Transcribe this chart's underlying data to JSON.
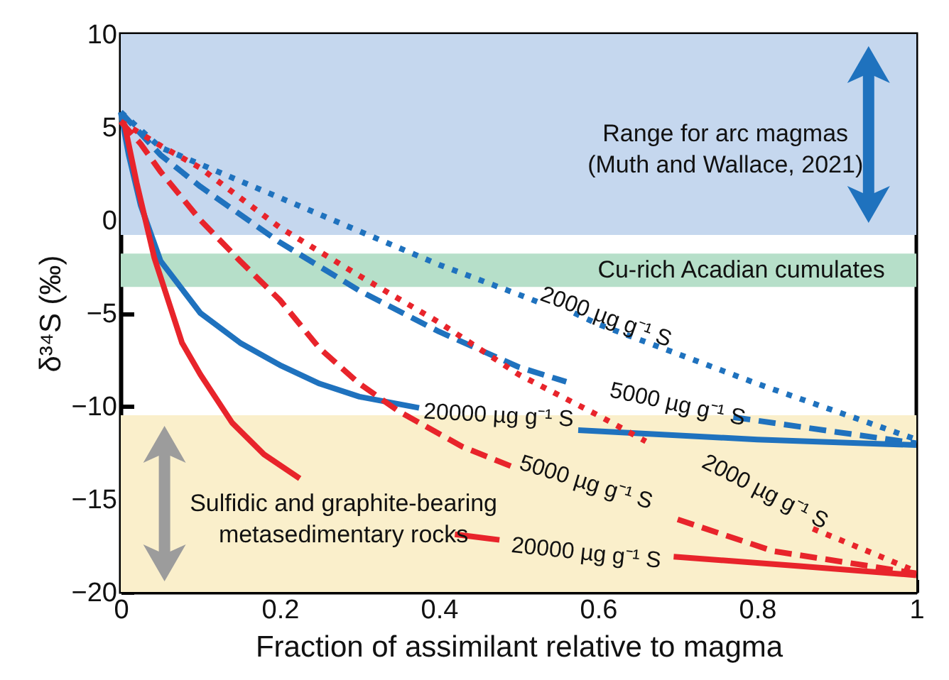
{
  "chart_data": {
    "type": "line",
    "xlabel": "Fraction of assimilant relative to magma",
    "ylabel": "δ³⁴S (‰)",
    "xlim": [
      0,
      1
    ],
    "xticks": [
      0,
      0.2,
      0.4,
      0.6,
      0.8,
      1
    ],
    "ylim": [
      -20,
      10
    ],
    "yticks": [
      -20,
      -15,
      -10,
      -5,
      0,
      5,
      10
    ],
    "grid": false,
    "series": [
      {
        "color": "#1f72be",
        "line_style": "dotted",
        "x": [
          0,
          0.05,
          0.1,
          0.2,
          0.3,
          0.4,
          0.5,
          0.53,
          0.55,
          0.57,
          0.6,
          0.7,
          0.8,
          0.9,
          1
        ],
        "values": [
          5.8,
          3.9,
          3.0,
          1.2,
          -0.6,
          -2.4,
          -4.0,
          -4.5,
          null,
          -5.0,
          -5.6,
          -7.2,
          -8.8,
          -10.3,
          -11.8
        ]
      },
      {
        "color": "#1f72be",
        "line_style": "dashed",
        "x": [
          0,
          0.05,
          0.1,
          0.2,
          0.3,
          0.4,
          0.5,
          0.56,
          0.66,
          0.77,
          0.9,
          1
        ],
        "values": [
          5.8,
          3.5,
          1.8,
          -1.2,
          -3.8,
          -6.0,
          -7.9,
          -8.7,
          null,
          -10.6,
          -11.4,
          -12.0
        ]
      },
      {
        "color": "#1f72be",
        "line_style": "solid",
        "x": [
          0,
          0.01,
          0.025,
          0.05,
          0.1,
          0.15,
          0.2,
          0.25,
          0.3,
          0.375,
          0.47,
          0.575,
          0.8,
          1
        ],
        "values": [
          5.8,
          3.5,
          0.8,
          -2.2,
          -5.0,
          -6.6,
          -7.8,
          -8.8,
          -9.5,
          -10.1,
          null,
          -11.3,
          -11.8,
          -12.1
        ]
      },
      {
        "color": "#e8242b",
        "line_style": "dotted",
        "x": [
          0,
          0.05,
          0.1,
          0.2,
          0.3,
          0.4,
          0.5,
          0.6,
          0.66,
          0.77,
          0.87,
          0.95,
          1
        ],
        "values": [
          5.3,
          4.0,
          2.8,
          -0.4,
          -3.0,
          -5.5,
          -8.3,
          -10.5,
          -11.9,
          null,
          -16.6,
          -18.0,
          -18.9
        ]
      },
      {
        "color": "#e8242b",
        "line_style": "dashed",
        "x": [
          0,
          0.025,
          0.05,
          0.1,
          0.15,
          0.2,
          0.25,
          0.3,
          0.35,
          0.43,
          0.5,
          0.6,
          0.7,
          0.82,
          1
        ],
        "values": [
          5.3,
          4.1,
          2.6,
          0.0,
          -2.2,
          -4.3,
          -6.9,
          -8.8,
          -10.3,
          -12.2,
          -13.4,
          null,
          -16.1,
          -17.8,
          -19.0
        ]
      },
      {
        "color": "#e8242b",
        "line_style": "solid",
        "x": [
          0,
          0.005,
          0.02,
          0.042,
          0.077,
          0.1,
          0.14,
          0.18,
          0.225,
          0.3,
          0.42,
          0.476,
          0.58,
          0.695,
          0.85,
          1
        ],
        "values": [
          5.3,
          5.1,
          2.0,
          -2.0,
          -6.6,
          -8.3,
          -10.9,
          -12.6,
          -13.9,
          null,
          -16.9,
          -17.2,
          null,
          -18.1,
          -18.6,
          -19.1
        ]
      }
    ],
    "bands": [
      {
        "axis": "y",
        "from": -0.8,
        "to": 10,
        "label": "Range for arc magmas\n(Muth and Wallace, 2021)",
        "color": "#c5d7ee"
      },
      {
        "axis": "y",
        "from": -3.6,
        "to": -1.8,
        "label": "Cu-rich Acadian cumulates",
        "color": "#b6dfc9"
      },
      {
        "axis": "y",
        "from": -20,
        "to": -10.5,
        "label": "Sulfidic and graphite-bearing\nmetasedimentary rocks",
        "color": "#faefcb"
      }
    ],
    "annotations": [
      "2000 µg g⁻¹ S",
      "5000 µg g⁻¹ S",
      "20000 µg g⁻¹ S",
      "2000 µg g⁻¹ S",
      "5000 µg g⁻¹ S",
      "20000 µg g⁻¹ S"
    ]
  }
}
